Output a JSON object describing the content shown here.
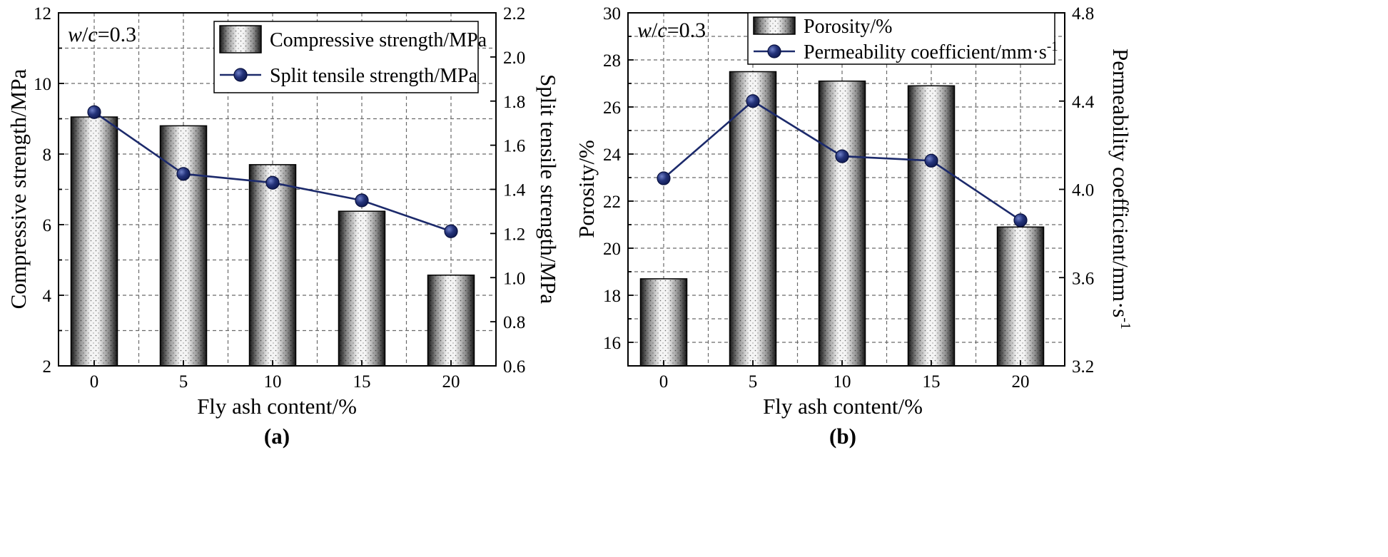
{
  "chart_data": [
    {
      "type": "bar+line",
      "panel_label": "(a)",
      "annotation": {
        "w": "w",
        "slash": "/",
        "c": "c",
        "rest": "=0.3"
      },
      "xlabel": "Fly ash content/%",
      "categories": [
        "0",
        "5",
        "10",
        "15",
        "20"
      ],
      "y_left": {
        "label": "Compressive strength/MPa",
        "range": [
          2,
          12
        ],
        "ticks": [
          "2",
          "4",
          "6",
          "8",
          "10",
          "12"
        ],
        "tick_values": [
          2,
          4,
          6,
          8,
          10,
          12
        ],
        "minor_values": [
          3,
          5,
          7,
          9,
          11
        ]
      },
      "y_right": {
        "label": "Split tensile strength/MPa",
        "range": [
          0.6,
          2.2
        ],
        "ticks": [
          "0.6",
          "0.8",
          "1.0",
          "1.2",
          "1.4",
          "1.6",
          "1.8",
          "2.0",
          "2.2"
        ],
        "tick_values": [
          0.6,
          0.8,
          1.0,
          1.2,
          1.4,
          1.6,
          1.8,
          2.0,
          2.2
        ]
      },
      "series": [
        {
          "name": "Compressive strength/MPa",
          "type": "bar",
          "axis": "left",
          "values": [
            9.05,
            8.8,
            7.7,
            6.38,
            4.57
          ]
        },
        {
          "name": "Split tensile strength/MPa",
          "type": "line",
          "axis": "right",
          "values": [
            1.75,
            1.47,
            1.43,
            1.35,
            1.21
          ]
        }
      ],
      "legend": [
        {
          "label": "Compressive strength/MPa",
          "sup": ""
        },
        {
          "label": "Split tensile strength/MPa",
          "sup": ""
        }
      ]
    },
    {
      "type": "bar+line",
      "panel_label": "(b)",
      "annotation": {
        "w": "w",
        "slash": "/",
        "c": "c",
        "rest": "=0.3"
      },
      "xlabel": "Fly ash content/%",
      "categories": [
        "0",
        "5",
        "10",
        "15",
        "20"
      ],
      "y_left": {
        "label": "Porosity/%",
        "range": [
          15,
          30
        ],
        "ticks": [
          "16",
          "18",
          "20",
          "22",
          "24",
          "26",
          "28",
          "30"
        ],
        "tick_values": [
          16,
          18,
          20,
          22,
          24,
          26,
          28,
          30
        ],
        "minor_values": [
          17,
          19,
          21,
          23,
          25,
          27,
          29
        ]
      },
      "y_right": {
        "label": "Permeability coefficient/mm·s",
        "label_sup": "-1",
        "range": [
          3.2,
          4.8
        ],
        "ticks": [
          "3.2",
          "3.6",
          "4.0",
          "4.4",
          "4.8"
        ],
        "tick_values": [
          3.2,
          3.6,
          4.0,
          4.4,
          4.8
        ]
      },
      "series": [
        {
          "name": "Porosity/%",
          "type": "bar",
          "axis": "left",
          "values": [
            18.7,
            27.5,
            27.1,
            26.9,
            20.9
          ]
        },
        {
          "name": "Permeability coefficient/mm·s-1",
          "type": "line",
          "axis": "right",
          "values": [
            4.05,
            4.4,
            4.15,
            4.13,
            3.86
          ]
        }
      ],
      "legend": [
        {
          "label": "Porosity/%",
          "sup": ""
        },
        {
          "label": "Permeability coefficient/mm·s",
          "sup": "-1"
        }
      ]
    }
  ],
  "colors": {
    "line": "#1c2a6b",
    "marker_light": "#6f80c8",
    "marker_dark": "#0f1a52",
    "bar_dark": "#151515",
    "bar_light": "#f4f4f4"
  }
}
